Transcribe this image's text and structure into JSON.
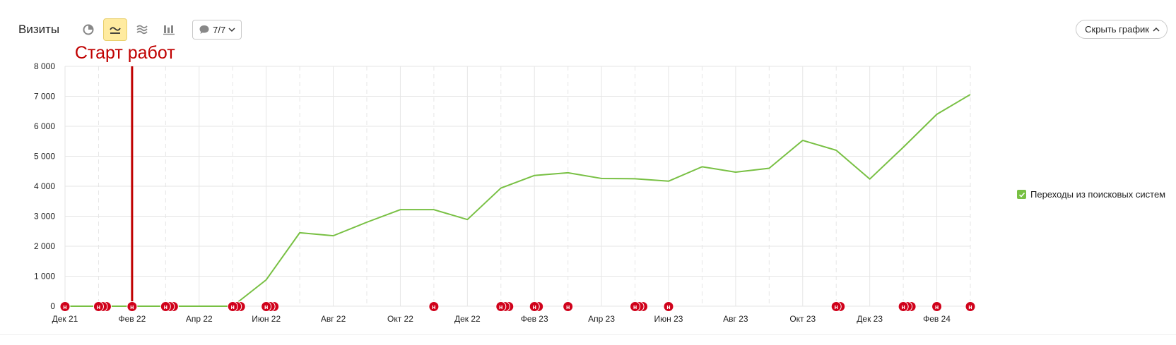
{
  "toolbar": {
    "title": "Визиты",
    "tools": [
      "pie-chart-icon",
      "line-chart-icon",
      "area-chart-icon",
      "column-chart-icon"
    ],
    "active_tool": "line-chart-icon",
    "annotations_counter": "7/7",
    "hide_chart_label": "Скрыть график"
  },
  "legend": {
    "items": [
      {
        "label": "Переходы из поисковых систем",
        "checked": true,
        "color": "#78c043"
      }
    ]
  },
  "chart_data": {
    "type": "line",
    "title": "",
    "xlabel": "",
    "ylabel": "",
    "x_range": [
      "2021-12",
      "2024-03"
    ],
    "ylim": [
      0,
      8000
    ],
    "y_ticks": [
      0,
      1000,
      2000,
      3000,
      4000,
      5000,
      6000,
      7000,
      8000
    ],
    "y_tick_labels": [
      "0",
      "1 000",
      "2 000",
      "3 000",
      "4 000",
      "5 000",
      "6 000",
      "7 000",
      "8 000"
    ],
    "x_tick_labels": [
      "Дек 21",
      "Фев 22",
      "Апр 22",
      "Июн 22",
      "Авг 22",
      "Окт 22",
      "Дек 22",
      "Фев 23",
      "Апр 23",
      "Июн 23",
      "Авг 23",
      "Окт 23",
      "Дек 23",
      "Фев 24"
    ],
    "x_tick_months": [
      "2021-12",
      "2022-02",
      "2022-04",
      "2022-06",
      "2022-08",
      "2022-10",
      "2022-12",
      "2023-02",
      "2023-04",
      "2023-06",
      "2023-08",
      "2023-10",
      "2023-12",
      "2024-02"
    ],
    "grid": true,
    "legend_position": "right",
    "series": [
      {
        "name": "Переходы из поисковых систем",
        "color": "#78c043",
        "x": [
          "2021-12",
          "2022-01",
          "2022-02",
          "2022-03",
          "2022-04",
          "2022-05",
          "2022-06",
          "2022-07",
          "2022-08",
          "2022-09",
          "2022-10",
          "2022-11",
          "2022-12",
          "2023-01",
          "2023-02",
          "2023-03",
          "2023-04",
          "2023-05",
          "2023-06",
          "2023-07",
          "2023-08",
          "2023-09",
          "2023-10",
          "2023-11",
          "2023-12",
          "2024-01",
          "2024-02",
          "2024-03"
        ],
        "values": [
          0,
          0,
          0,
          0,
          0,
          0,
          880,
          2450,
          2350,
          2800,
          3220,
          3220,
          2890,
          3940,
          4360,
          4450,
          4260,
          4250,
          4170,
          4650,
          4470,
          4600,
          5530,
          5200,
          4240,
          5300,
          6400,
          7060
        ]
      }
    ],
    "annotation": {
      "label": "Старт работ",
      "x": "2022-02",
      "color": "#c00000"
    },
    "note_markers": [
      {
        "x": "2021-12",
        "count": 1,
        "label": "н"
      },
      {
        "x": "2022-01",
        "count": 3,
        "label": "н"
      },
      {
        "x": "2022-02",
        "count": 1,
        "label": "н"
      },
      {
        "x": "2022-03",
        "count": 3,
        "label": "н"
      },
      {
        "x": "2022-05",
        "count": 3,
        "label": "н"
      },
      {
        "x": "2022-06",
        "count": 3,
        "label": "н"
      },
      {
        "x": "2022-11",
        "count": 1,
        "label": "н"
      },
      {
        "x": "2023-01",
        "count": 3,
        "label": "н"
      },
      {
        "x": "2023-02",
        "count": 2,
        "label": "н"
      },
      {
        "x": "2023-03",
        "count": 1,
        "label": "н"
      },
      {
        "x": "2023-05",
        "count": 3,
        "label": "н"
      },
      {
        "x": "2023-06",
        "count": 1,
        "label": "н"
      },
      {
        "x": "2023-11",
        "count": 2,
        "label": "н"
      },
      {
        "x": "2024-01",
        "count": 3,
        "label": "н"
      },
      {
        "x": "2024-02",
        "count": 1,
        "label": "н"
      },
      {
        "x": "2024-03",
        "count": 1,
        "label": "н"
      }
    ]
  }
}
